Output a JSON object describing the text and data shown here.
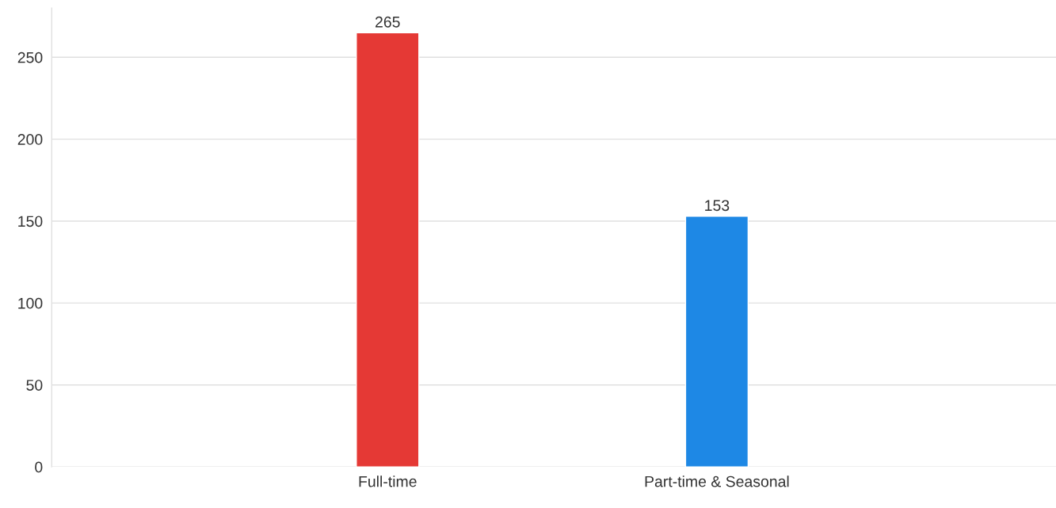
{
  "chart_data": {
    "type": "bar",
    "categories": [
      "Full-time",
      "Part-time & Seasonal"
    ],
    "values": [
      265,
      153
    ],
    "colors": [
      "#e53935",
      "#1e88e5"
    ],
    "ylim": [
      0,
      280
    ],
    "yticks": [
      0,
      50,
      100,
      150,
      200,
      250
    ],
    "grid": "y",
    "data_labels": true,
    "legend": false
  }
}
